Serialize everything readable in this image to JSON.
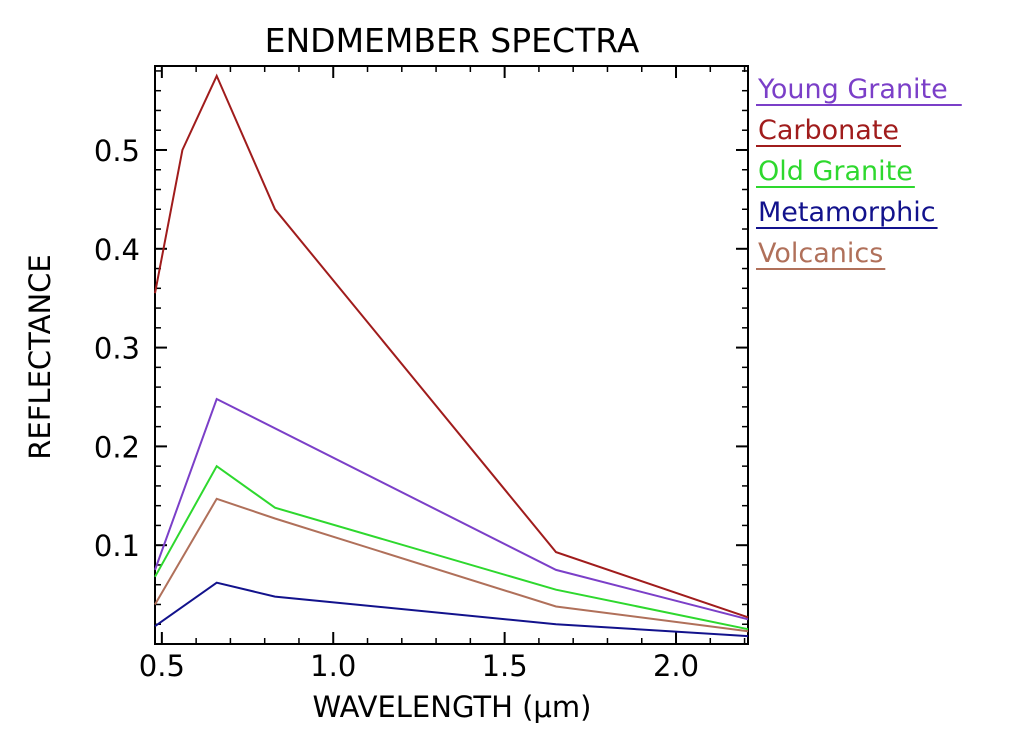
{
  "chart_data": {
    "type": "line",
    "title": "ENDMEMBER SPECTRA",
    "xlabel": "WAVELENGTH (μm)",
    "ylabel": "REFLECTANCE",
    "xlim": [
      0.48,
      2.21
    ],
    "ylim": [
      0.0,
      0.585
    ],
    "xticks": [
      "0.5",
      "1.0",
      "1.5",
      "2.0"
    ],
    "xtick_values": [
      0.5,
      1.0,
      1.5,
      2.0
    ],
    "yticks": [
      "0.1",
      "0.2",
      "0.3",
      "0.4",
      "0.5"
    ],
    "ytick_values": [
      0.1,
      0.2,
      0.3,
      0.4,
      0.5
    ],
    "legend_position": "right-outside",
    "series": [
      {
        "name": "Young Granite",
        "color": "#7b3fc8",
        "x": [
          0.48,
          0.66,
          1.65,
          2.21
        ],
        "y": [
          0.075,
          0.248,
          0.075,
          0.025
        ]
      },
      {
        "name": "Carbonate",
        "color": "#a01c1c",
        "x": [
          0.48,
          0.56,
          0.66,
          0.83,
          1.65,
          2.21
        ],
        "y": [
          0.355,
          0.5,
          0.575,
          0.44,
          0.093,
          0.027
        ]
      },
      {
        "name": "Old Granite",
        "color": "#2ed82e",
        "x": [
          0.48,
          0.66,
          0.83,
          1.65,
          2.21
        ],
        "y": [
          0.068,
          0.18,
          0.138,
          0.055,
          0.015
        ]
      },
      {
        "name": "Metamorphic",
        "color": "#12128c",
        "x": [
          0.48,
          0.66,
          0.83,
          1.65,
          2.21
        ],
        "y": [
          0.018,
          0.062,
          0.048,
          0.02,
          0.008
        ]
      },
      {
        "name": "Volcanics",
        "color": "#b0705a",
        "x": [
          0.48,
          0.66,
          0.83,
          1.65,
          2.21
        ],
        "y": [
          0.04,
          0.147,
          0.127,
          0.038,
          0.013
        ]
      }
    ]
  }
}
